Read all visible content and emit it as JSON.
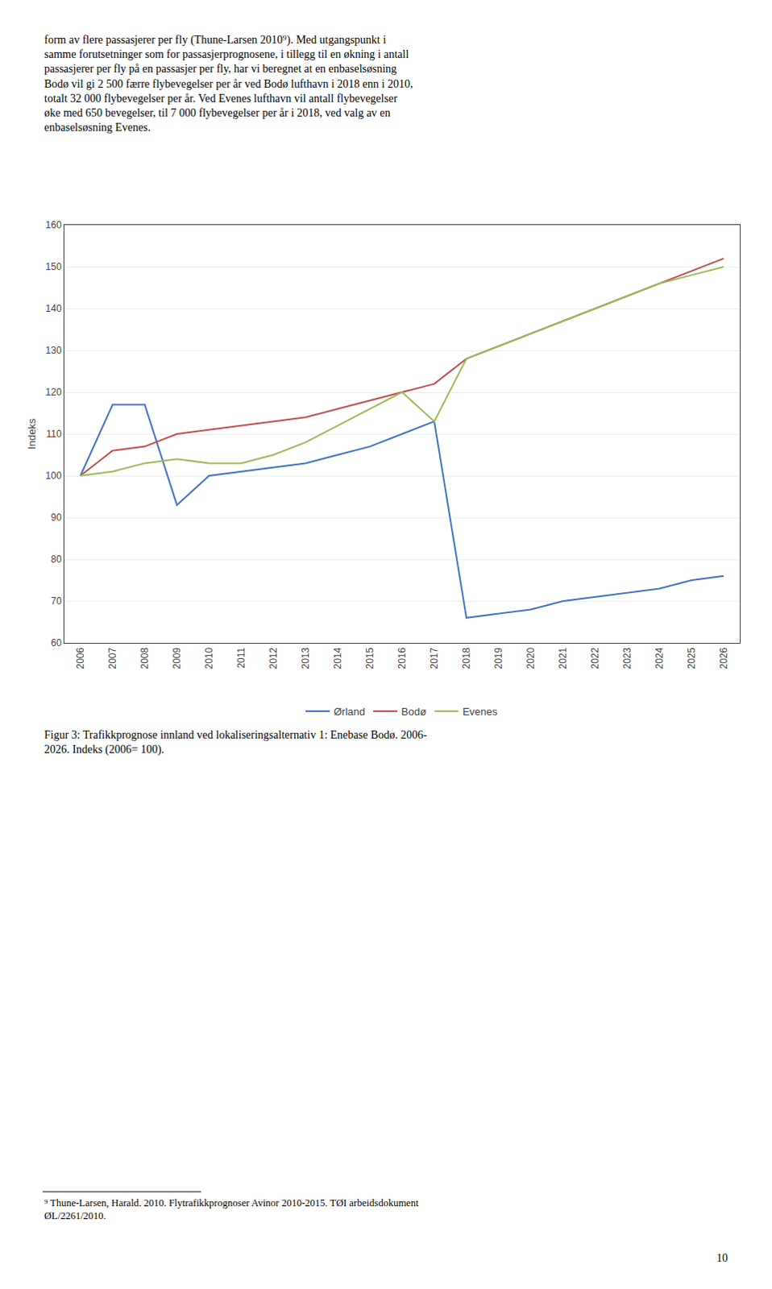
{
  "chart_data": {
    "type": "line",
    "categories": [
      "2006",
      "2007",
      "2008",
      "2009",
      "2010",
      "2011",
      "2012",
      "2013",
      "2014",
      "2015",
      "2016",
      "2017",
      "2018",
      "2019",
      "2020",
      "2021",
      "2022",
      "2023",
      "2024",
      "2025",
      "2026"
    ],
    "series": [
      {
        "name": "Ørland",
        "color": "#4472C4",
        "values": [
          100,
          117,
          117,
          93,
          100,
          101,
          102,
          103,
          105,
          107,
          110,
          113,
          66,
          67,
          68,
          70,
          71,
          72,
          73,
          75,
          76
        ]
      },
      {
        "name": "Bodø",
        "color": "#C0504D",
        "values": [
          100,
          106,
          107,
          110,
          111,
          112,
          113,
          114,
          116,
          118,
          120,
          122,
          128,
          131,
          134,
          137,
          140,
          143,
          146,
          149,
          152
        ]
      },
      {
        "name": "Evenes",
        "color": "#9BBB59",
        "values": [
          100,
          101,
          103,
          104,
          103,
          103,
          105,
          108,
          112,
          116,
          120,
          113,
          128,
          131,
          134,
          137,
          140,
          143,
          146,
          148,
          150
        ]
      }
    ],
    "ylabel": "Indeks",
    "ylim": [
      60,
      160
    ],
    "yticks": [
      60,
      70,
      80,
      90,
      100,
      110,
      120,
      130,
      140,
      150,
      160
    ],
    "grid": true,
    "legend": "bottom",
    "annotations": [
      "form av flere passasjerer per fly (Thune-Larsen 2010⁹). Med utgangspunkt i\nsamme forutsetninger som for passasjerprognosene, i tillegg til en økning i antall\npassasjerer per fly på en passasjer per fly, har vi beregnet at en enbaselsøsning\nBodø vil gi 2 500 færre flybevegelser per år ved Bodø lufthavn i 2018 enn i 2010,\ntotalt 32 000 flybevegelser per år. Ved Evenes lufthavn vil antall flybevegelser\nøke med 650 bevegelser, til 7 000 flybevegelser per år i 2018, ved valg av en\nenbaselsøsning Evenes.",
      "Figur 3: Trafikkprognose innland ved lokaliseringsalternativ 1: Enebase Bodø. 2006-\n2026. Indeks (2006= 100).",
      "⁹ Thune-Larsen, Harald. 2010. Flytrafikkprognoser Avinor 2010-2015. TØI arbeidsdokument\nØL/2261/2010.",
      "10"
    ]
  }
}
